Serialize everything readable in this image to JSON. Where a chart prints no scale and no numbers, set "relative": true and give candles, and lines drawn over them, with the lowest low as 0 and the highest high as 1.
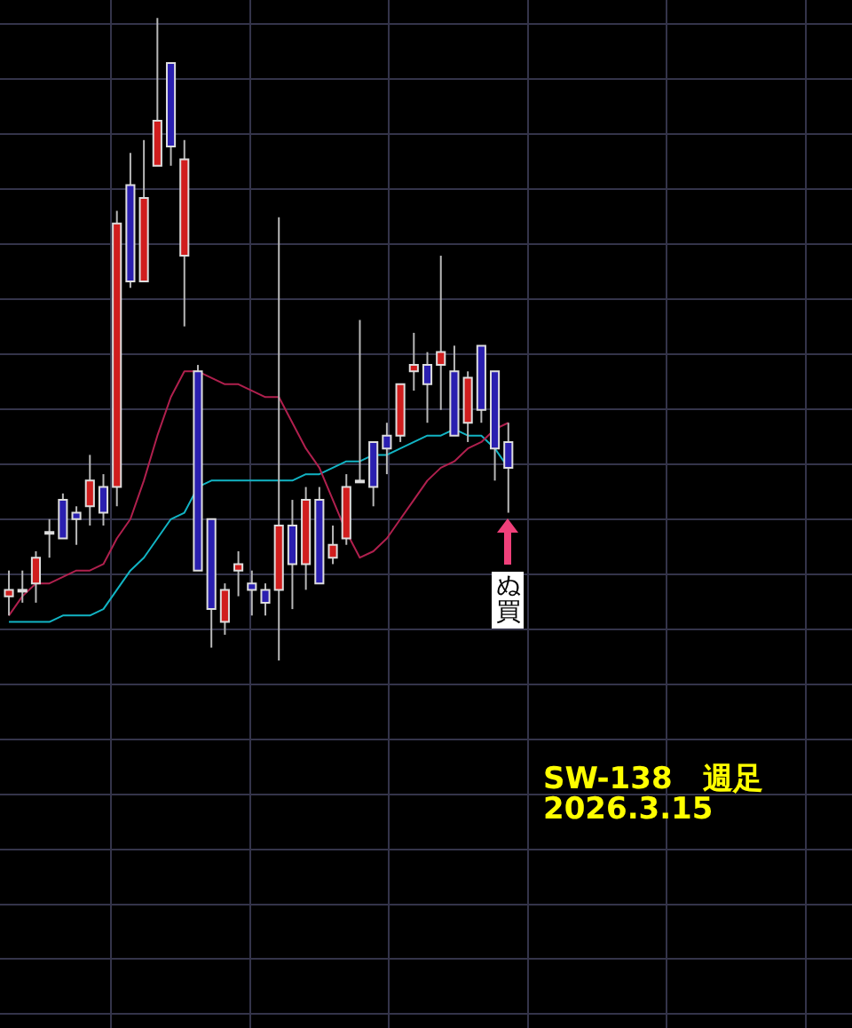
{
  "chart_data": {
    "type": "candlestick",
    "title": "SW-138　週足",
    "subtitle": "2026.3.15",
    "relative": true,
    "grid": true,
    "legend": false,
    "annotations": [
      "ぬ買"
    ],
    "categories": [
      null,
      null,
      null,
      null,
      null,
      null,
      null,
      null,
      null,
      null,
      null,
      null,
      null,
      null,
      null,
      null,
      null,
      null,
      null,
      null,
      null,
      null,
      null,
      null,
      null,
      null,
      null,
      null,
      null,
      null,
      null,
      null,
      null,
      null,
      null,
      null,
      null,
      null
    ],
    "ohlc": [
      [
        0.1,
        0.14,
        0.07,
        0.11
      ],
      [
        0.11,
        0.14,
        0.09,
        0.11
      ],
      [
        0.12,
        0.17,
        0.09,
        0.16
      ],
      [
        0.2,
        0.22,
        0.16,
        0.2
      ],
      [
        0.25,
        0.26,
        0.19,
        0.19
      ],
      [
        0.23,
        0.24,
        0.18,
        0.22
      ],
      [
        0.24,
        0.32,
        0.21,
        0.28
      ],
      [
        0.27,
        0.29,
        0.21,
        0.23
      ],
      [
        0.27,
        0.7,
        0.24,
        0.68
      ],
      [
        0.74,
        0.79,
        0.58,
        0.59
      ],
      [
        0.59,
        0.81,
        0.59,
        0.72
      ],
      [
        0.77,
        1.0,
        0.77,
        0.84
      ],
      [
        0.93,
        0.93,
        0.77,
        0.8
      ],
      [
        0.63,
        0.81,
        0.52,
        0.78
      ],
      [
        0.45,
        0.46,
        0.14,
        0.14
      ],
      [
        0.22,
        0.22,
        0.02,
        0.08
      ],
      [
        0.06,
        0.12,
        0.04,
        0.11
      ],
      [
        0.14,
        0.17,
        0.1,
        0.15
      ],
      [
        0.12,
        0.14,
        0.07,
        0.11
      ],
      [
        0.11,
        0.12,
        0.07,
        0.09
      ],
      [
        0.11,
        0.69,
        0,
        0.21
      ],
      [
        0.21,
        0.25,
        0.08,
        0.15
      ],
      [
        0.15,
        0.27,
        0.11,
        0.25
      ],
      [
        0.25,
        0.27,
        0.12,
        0.12
      ],
      [
        0.16,
        0.21,
        0.15,
        0.18
      ],
      [
        0.19,
        0.29,
        0.18,
        0.27
      ],
      [
        0.28,
        0.53,
        0.28,
        0.28
      ],
      [
        0.34,
        0.34,
        0.24,
        0.27
      ],
      [
        0.35,
        0.37,
        0.29,
        0.33
      ],
      [
        0.35,
        0.43,
        0.34,
        0.43
      ],
      [
        0.45,
        0.51,
        0.42,
        0.46
      ],
      [
        0.46,
        0.48,
        0.37,
        0.43
      ],
      [
        0.46,
        0.63,
        0.39,
        0.48
      ],
      [
        0.45,
        0.49,
        0.35,
        0.35
      ],
      [
        0.37,
        0.45,
        0.34,
        0.44
      ],
      [
        0.49,
        0.49,
        0.37,
        0.39
      ],
      [
        0.45,
        0.45,
        0.28,
        0.33
      ],
      [
        0.34,
        0.37,
        0.23,
        0.3
      ]
    ],
    "colors": [
      "#d01e1e",
      "#d01e1e",
      "#d01e1e",
      "#d01e1e",
      "#2a1fb0",
      "#2a1fb0",
      "#d01e1e",
      "#2a1fb0",
      "#d01e1e",
      "#2a1fb0",
      "#d01e1e",
      "#d01e1e",
      "#2a1fb0",
      "#d01e1e",
      "#2a1fb0",
      "#2a1fb0",
      "#d01e1e",
      "#d01e1e",
      "#2a1fb0",
      "#2a1fb0",
      "#d01e1e",
      "#2a1fb0",
      "#d01e1e",
      "#2a1fb0",
      "#d01e1e",
      "#d01e1e",
      "#d01e1e",
      "#2a1fb0",
      "#2a1fb0",
      "#d01e1e",
      "#d01e1e",
      "#2a1fb0",
      "#d01e1e",
      "#2a1fb0",
      "#d01e1e",
      "#2a1fb0",
      "#2a1fb0",
      "#2a1fb0"
    ],
    "series": [
      {
        "type": "line",
        "color": "#b0204e",
        "values": [
          0.07,
          0.1,
          0.12,
          0.12,
          0.13,
          0.14,
          0.14,
          0.15,
          0.19,
          0.22,
          0.28,
          0.35,
          0.41,
          0.45,
          0.45,
          0.44,
          0.43,
          0.43,
          0.42,
          0.41,
          0.41,
          0.37,
          0.33,
          0.3,
          0.25,
          0.2,
          0.16,
          0.17,
          0.19,
          0.22,
          0.25,
          0.28,
          0.3,
          0.31,
          0.33,
          0.34,
          0.36,
          0.37
        ]
      },
      {
        "type": "line",
        "color": "#12b4c4",
        "values": [
          0.06,
          0.06,
          0.06,
          0.06,
          0.07,
          0.07,
          0.07,
          0.08,
          0.11,
          0.14,
          0.16,
          0.19,
          0.22,
          0.23,
          0.27,
          0.28,
          0.28,
          0.28,
          0.28,
          0.28,
          0.28,
          0.28,
          0.29,
          0.29,
          0.3,
          0.31,
          0.31,
          0.32,
          0.32,
          0.33,
          0.34,
          0.35,
          0.35,
          0.36,
          0.35,
          0.35,
          0.33,
          0.3
        ]
      }
    ]
  }
}
